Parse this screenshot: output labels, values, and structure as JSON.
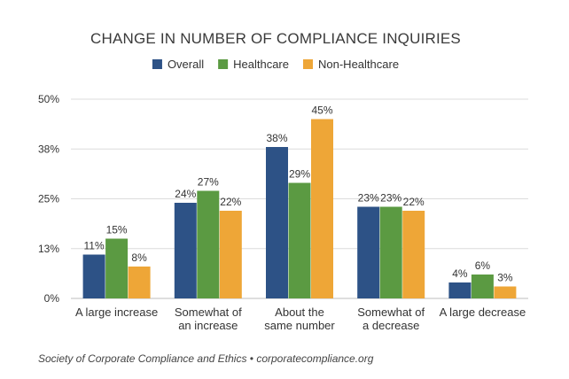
{
  "chart_data": {
    "type": "bar",
    "title": "CHANGE IN NUMBER OF COMPLIANCE INQUIRIES",
    "categories": [
      [
        "A large increase"
      ],
      [
        "Somewhat of",
        "an increase"
      ],
      [
        "About the",
        "same number"
      ],
      [
        "Somewhat of",
        "a decrease"
      ],
      [
        "A large decrease"
      ]
    ],
    "series": [
      {
        "name": "Overall",
        "color": "#2d5286",
        "values": [
          11,
          24,
          38,
          23,
          4
        ],
        "labels": [
          "11%",
          "24%",
          "38%",
          "23%",
          "4%"
        ]
      },
      {
        "name": "Healthcare",
        "color": "#5b9a42",
        "values": [
          15,
          27,
          29,
          23,
          6
        ],
        "labels": [
          "15%",
          "27%",
          "29%",
          "23%",
          "6%"
        ]
      },
      {
        "name": "Non-Healthcare",
        "color": "#eea637",
        "values": [
          8,
          22,
          45,
          22,
          3
        ],
        "labels": [
          "8%",
          "22%",
          "45%",
          "22%",
          "3%"
        ]
      }
    ],
    "yticks": [
      {
        "value": 0,
        "label": "0%"
      },
      {
        "value": 12.5,
        "label": "13%"
      },
      {
        "value": 25,
        "label": "25%"
      },
      {
        "value": 37.5,
        "label": "38%"
      },
      {
        "value": 50,
        "label": "50%"
      }
    ],
    "ylim": [
      0,
      50
    ],
    "grid": true,
    "legend": "top-center",
    "xlabel": "",
    "ylabel": ""
  },
  "source": "Society of Corporate Compliance and Ethics • corporatecompliance.org"
}
